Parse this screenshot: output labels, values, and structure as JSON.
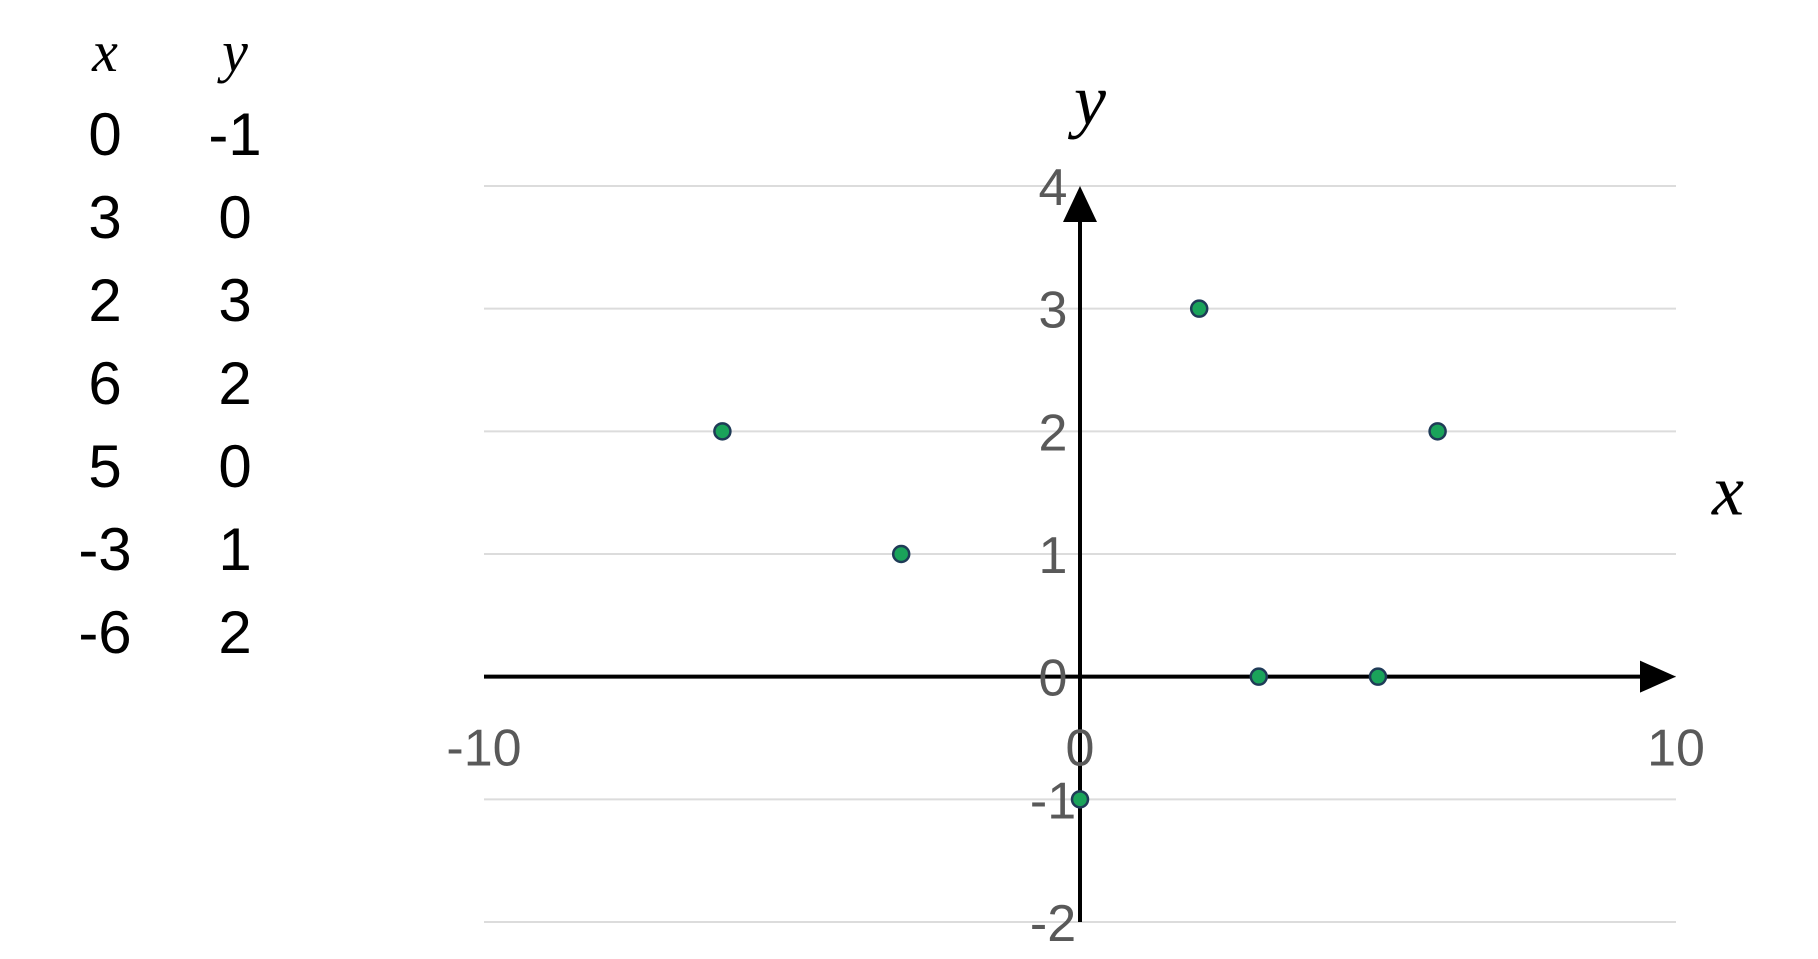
{
  "table": {
    "headers": [
      "x",
      "y"
    ],
    "rows": [
      [
        "0",
        "-1"
      ],
      [
        "3",
        "0"
      ],
      [
        "2",
        "3"
      ],
      [
        "6",
        "2"
      ],
      [
        "5",
        "0"
      ],
      [
        "-3",
        "1"
      ],
      [
        "-6",
        "2"
      ]
    ]
  },
  "chart_data": {
    "type": "scatter",
    "title": "",
    "xlabel": "x",
    "ylabel": "y",
    "xlim": [
      -10,
      10
    ],
    "ylim": [
      -2,
      4
    ],
    "x_ticks": [
      "-10",
      "0",
      "10"
    ],
    "y_ticks": [
      "-2",
      "-1",
      "0",
      "1",
      "2",
      "3",
      "4"
    ],
    "grid": "horizontal",
    "legend": "none",
    "point_color": "#1aa35a",
    "point_edge_color": "#1f3b57",
    "series": [
      {
        "points": [
          {
            "x": 0,
            "y": -1
          },
          {
            "x": 3,
            "y": 0
          },
          {
            "x": 2,
            "y": 3
          },
          {
            "x": 6,
            "y": 2
          },
          {
            "x": 5,
            "y": 0
          },
          {
            "x": -3,
            "y": 1
          },
          {
            "x": -6,
            "y": 2
          }
        ]
      }
    ]
  }
}
